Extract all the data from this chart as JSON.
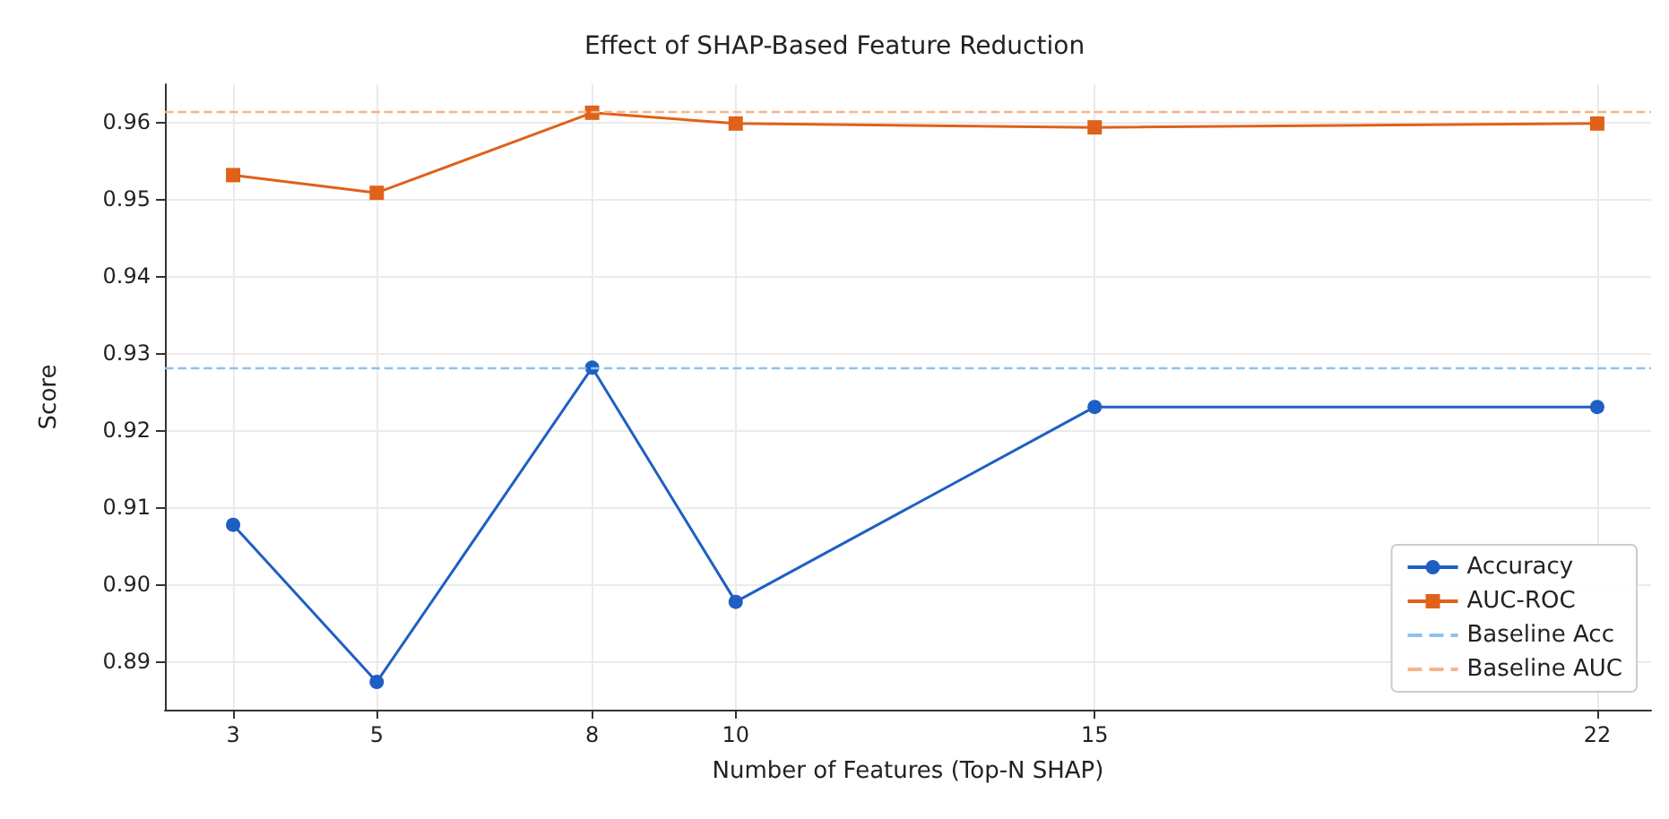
{
  "chart_data": {
    "type": "line",
    "title": "Effect of SHAP-Based Feature Reduction",
    "xlabel": "Number of Features (Top-N SHAP)",
    "ylabel": "Score",
    "x": [
      3,
      5,
      8,
      10,
      15,
      22
    ],
    "series": [
      {
        "name": "Accuracy",
        "color": "#1f5fc4",
        "marker": "circle",
        "values": [
          0.9077,
          0.8873,
          0.9281,
          0.8977,
          0.923,
          0.923
        ]
      },
      {
        "name": "AUC-ROC",
        "color": "#e0611a",
        "marker": "square",
        "values": [
          0.9531,
          0.9508,
          0.9612,
          0.9598,
          0.9593,
          0.9598
        ]
      }
    ],
    "ref_lines": [
      {
        "axis": "y",
        "value": 0.9281,
        "label": "Baseline Acc",
        "color": "#8ec2f0",
        "line_style": "dashed"
      },
      {
        "axis": "y",
        "value": 0.9613,
        "label": "Baseline AUC",
        "color": "#f5b48a",
        "line_style": "dashed"
      }
    ],
    "xlim": [
      2.05,
      22.75
    ],
    "xticks": [
      3,
      5,
      8,
      10,
      15,
      22
    ],
    "ylim": [
      0.8837,
      0.9649
    ],
    "yticks": [
      0.89,
      {
        "value": 0.9,
        "label": "0.90"
      },
      0.91,
      0.92,
      0.93,
      0.94,
      0.95,
      0.96
    ],
    "grid": true,
    "legend": "bottom right",
    "line_style": "solid"
  }
}
